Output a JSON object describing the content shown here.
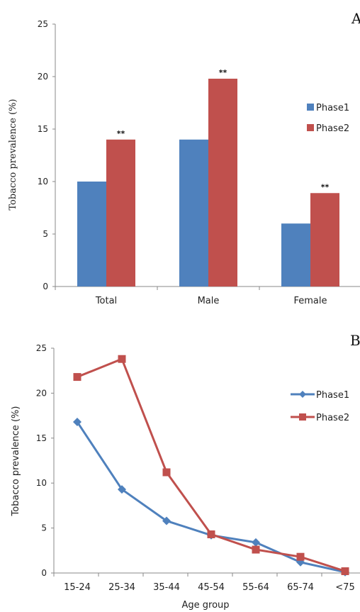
{
  "chart_data": [
    {
      "panel": "A",
      "type": "bar",
      "ylabel": "Tobacco prevalence (%)",
      "xlabel": "",
      "ylim": [
        0,
        25
      ],
      "yticks": [
        0,
        5,
        10,
        15,
        20,
        25
      ],
      "categories": [
        "Total",
        "Male",
        "Female"
      ],
      "series": [
        {
          "name": "Phase1",
          "values": [
            10,
            14,
            6
          ],
          "color": "#4f81bd"
        },
        {
          "name": "Phase2",
          "values": [
            14,
            19.8,
            8.9
          ],
          "color": "#c0504d"
        }
      ],
      "annotations": [
        "**",
        "**",
        "**"
      ],
      "legend": "right",
      "grid": false
    },
    {
      "panel": "B",
      "type": "line",
      "ylabel": "Tobacco prevalence (%)",
      "xlabel": "Age group",
      "ylim": [
        0,
        25
      ],
      "yticks": [
        0,
        5,
        10,
        15,
        20,
        25
      ],
      "categories": [
        "15-24",
        "25-34",
        "35-44",
        "45-54",
        "55-64",
        "65-74",
        "<75"
      ],
      "series": [
        {
          "name": "Phase1",
          "values": [
            16.8,
            9.3,
            5.8,
            4.2,
            3.4,
            1.2,
            0.1
          ],
          "color": "#4f81bd",
          "marker": "diamond"
        },
        {
          "name": "Phase2",
          "values": [
            21.8,
            23.8,
            11.2,
            4.3,
            2.6,
            1.8,
            0.2
          ],
          "color": "#c0504d",
          "marker": "square"
        }
      ],
      "legend": "right",
      "grid": false
    }
  ]
}
